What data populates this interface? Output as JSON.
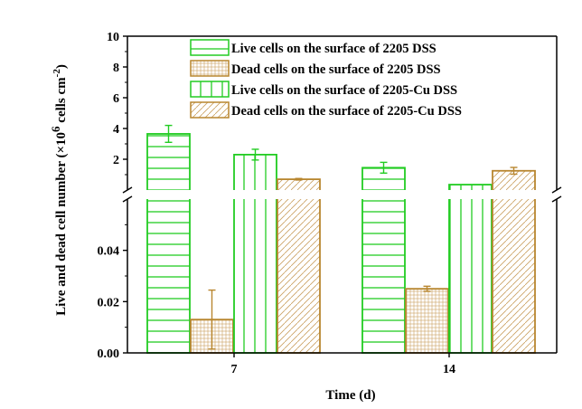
{
  "chart_data": {
    "type": "bar",
    "xlabel": "Time (d)",
    "ylabel_prefix": "Live and dead cell number (×10",
    "ylabel_exp": "6",
    "ylabel_unit": "cells cm",
    "ylabel_unit_exp": "-2",
    "ylabel_close": ")",
    "categories": [
      "7",
      "14"
    ],
    "axis_break": true,
    "lower_segment": {
      "ylim": [
        0,
        0.06
      ],
      "ticks": [
        "0.00",
        "0.02",
        "0.04"
      ],
      "tick_values": [
        0,
        0.02,
        0.04
      ]
    },
    "upper_segment": {
      "ylim": [
        0,
        10
      ],
      "ticks": [
        "2",
        "4",
        "6",
        "8",
        "10"
      ],
      "tick_values": [
        2,
        4,
        6,
        8,
        10
      ]
    },
    "series": [
      {
        "name": "Live cells on the surface of 2205 DSS",
        "values": [
          3.65,
          1.45
        ],
        "errors": [
          0.55,
          0.35
        ],
        "color": "#22cc22",
        "pattern": "horizontal"
      },
      {
        "name": "Dead cells on the surface of 2205 DSS",
        "values": [
          0.013,
          0.025
        ],
        "errors": [
          0.0115,
          0.001
        ],
        "color": "#b8862f",
        "pattern": "grid"
      },
      {
        "name": "Live cells on the surface of 2205-Cu DSS",
        "values": [
          2.3,
          0.35
        ],
        "errors": [
          0.35,
          0.0
        ],
        "color": "#22cc22",
        "pattern": "vertical"
      },
      {
        "name": "Dead cells on the surface of 2205-Cu DSS",
        "values": [
          0.7,
          1.25
        ],
        "errors": [
          0.05,
          0.22
        ],
        "color": "#b8862f",
        "pattern": "diagonal"
      }
    ]
  }
}
